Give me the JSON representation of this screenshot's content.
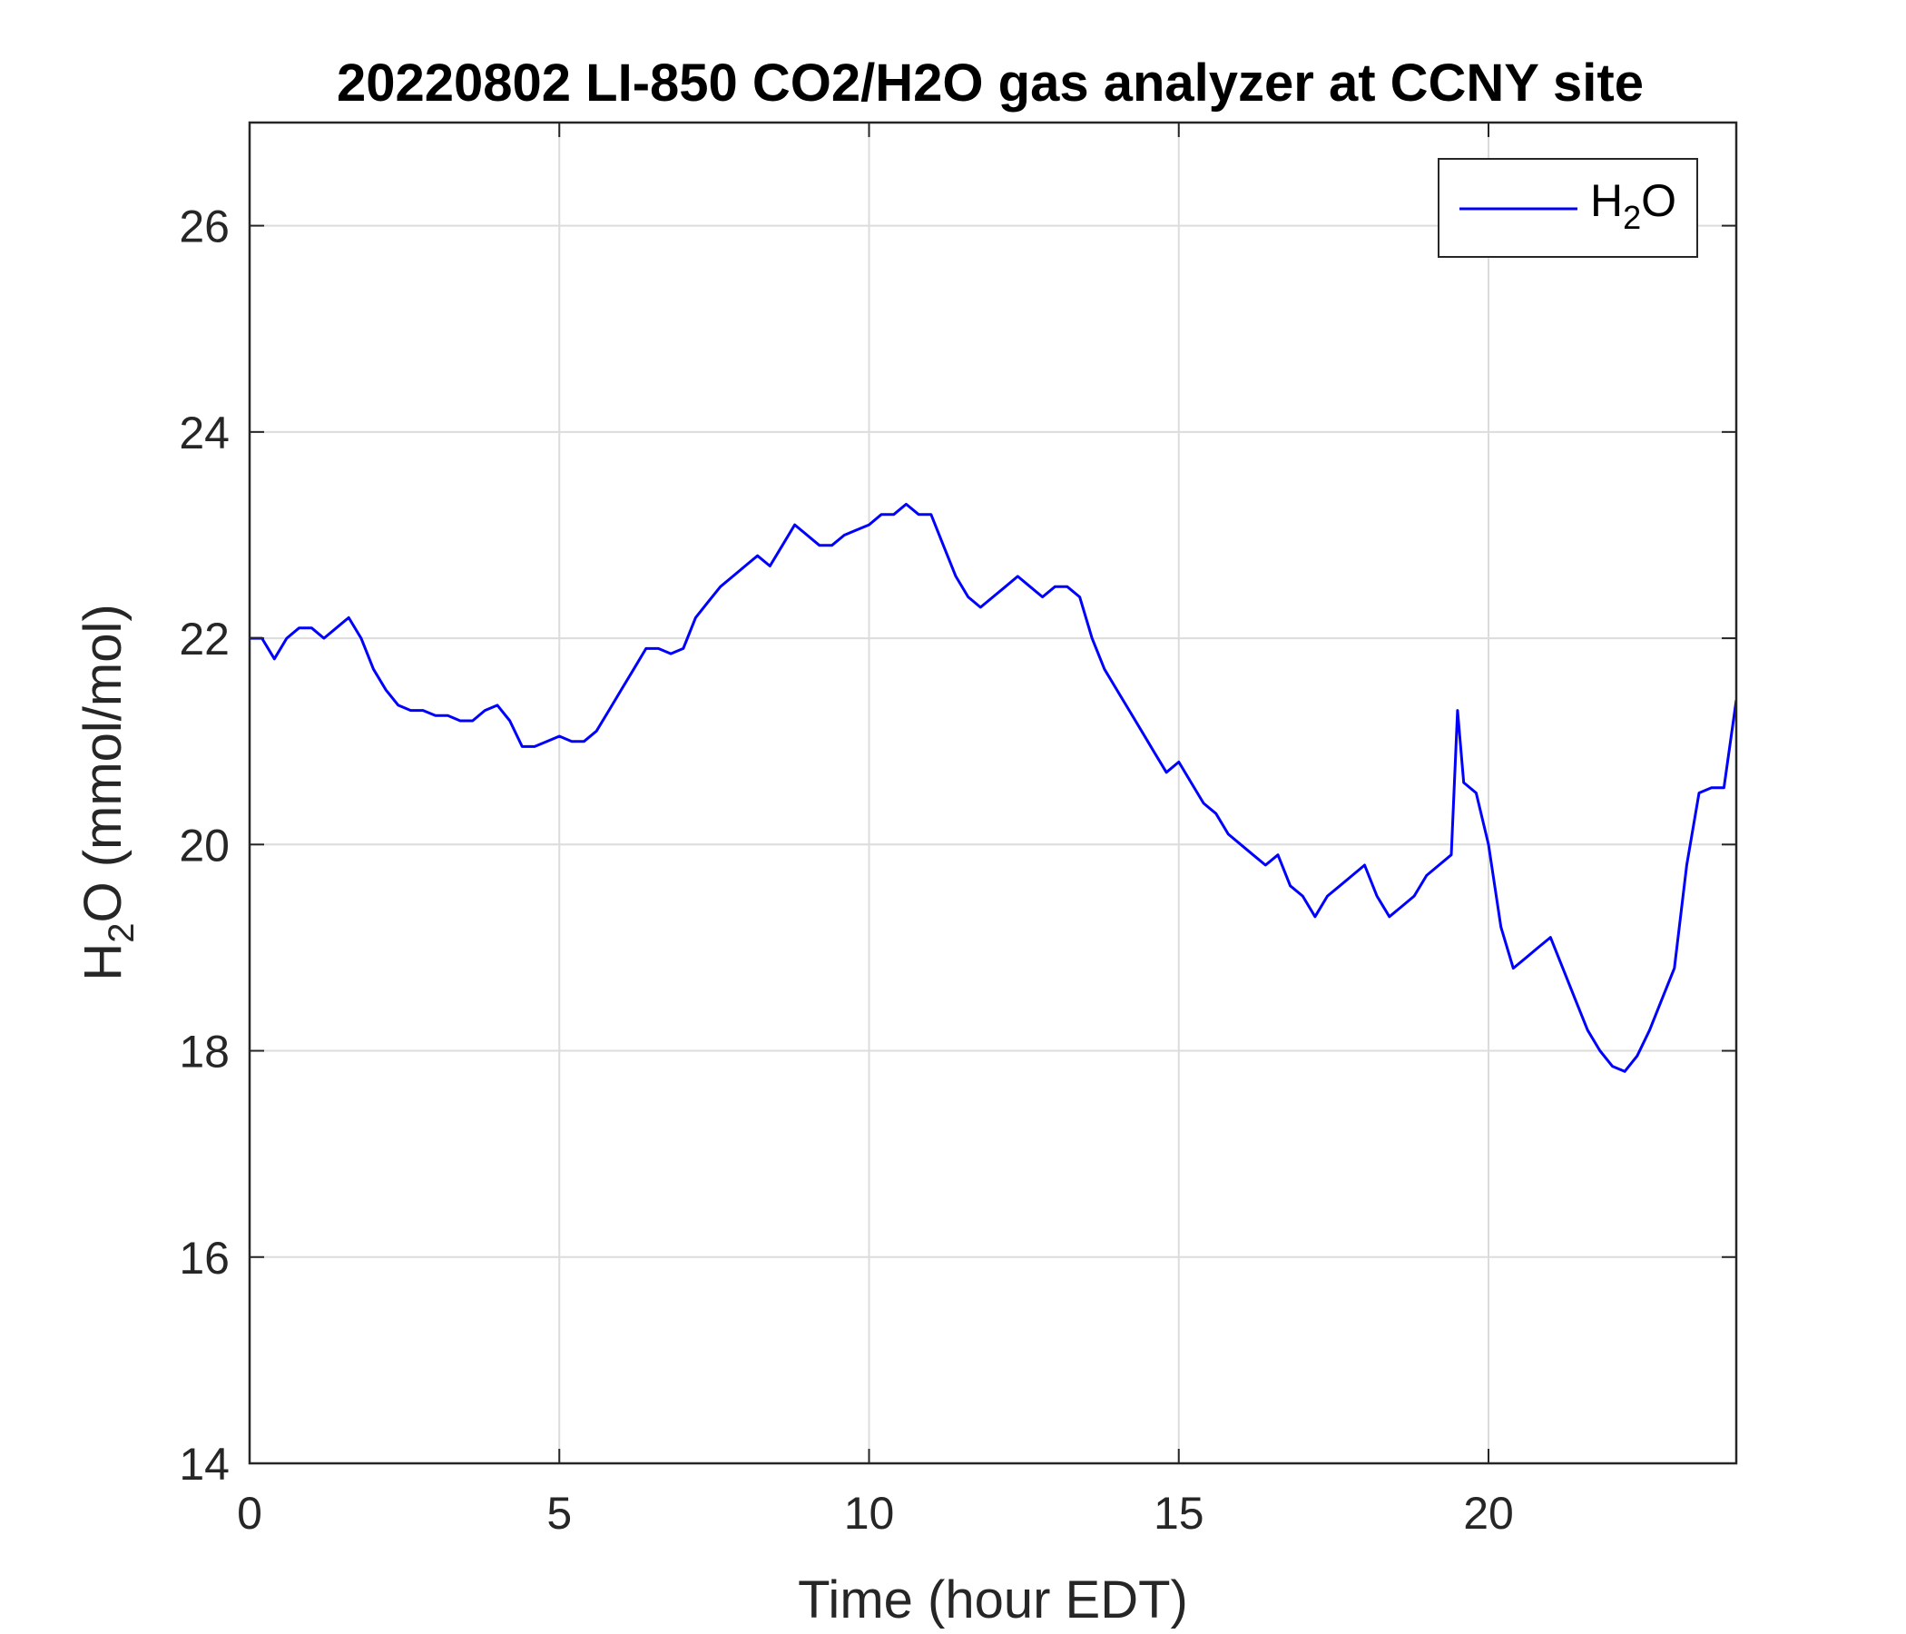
{
  "chart_data": {
    "type": "line",
    "title": "20220802 LI-850 CO2/H2O gas analyzer at CCNY site",
    "xlabel": "Time (hour EDT)",
    "ylabel": {
      "main": "H",
      "sub": "2",
      "rest": "O (mmol/mol)"
    },
    "xlim": [
      0,
      24
    ],
    "ylim": [
      14,
      27
    ],
    "xticks": [
      0,
      5,
      10,
      15,
      20
    ],
    "yticks": [
      14,
      16,
      18,
      20,
      22,
      24,
      26
    ],
    "grid": true,
    "legend_placement": "top-right",
    "series": [
      {
        "name": {
          "main": "H",
          "sub": "2",
          "rest": "O"
        },
        "color": "#0000ff",
        "x": [
          0.0,
          0.2,
          0.4,
          0.6,
          0.8,
          1.0,
          1.2,
          1.4,
          1.6,
          1.8,
          2.0,
          2.2,
          2.4,
          2.6,
          2.8,
          3.0,
          3.2,
          3.4,
          3.6,
          3.8,
          4.0,
          4.2,
          4.4,
          4.6,
          4.8,
          5.0,
          5.2,
          5.4,
          5.6,
          5.8,
          6.0,
          6.2,
          6.4,
          6.6,
          6.8,
          7.0,
          7.2,
          7.4,
          7.6,
          7.8,
          8.0,
          8.2,
          8.4,
          8.6,
          8.8,
          9.0,
          9.2,
          9.4,
          9.6,
          9.8,
          10.0,
          10.2,
          10.4,
          10.6,
          10.8,
          11.0,
          11.2,
          11.4,
          11.6,
          11.8,
          12.0,
          12.2,
          12.4,
          12.6,
          12.8,
          13.0,
          13.2,
          13.4,
          13.6,
          13.8,
          14.0,
          14.2,
          14.4,
          14.6,
          14.8,
          15.0,
          15.2,
          15.4,
          15.6,
          15.8,
          16.0,
          16.2,
          16.4,
          16.6,
          16.8,
          17.0,
          17.2,
          17.4,
          17.6,
          17.8,
          18.0,
          18.2,
          18.4,
          18.6,
          18.8,
          19.0,
          19.2,
          19.4,
          19.5,
          19.6,
          19.8,
          20.0,
          20.2,
          20.4,
          20.6,
          20.8,
          21.0,
          21.2,
          21.4,
          21.6,
          21.8,
          22.0,
          22.2,
          22.4,
          22.6,
          22.8,
          23.0,
          23.2,
          23.4,
          23.6,
          23.8,
          24.0
        ],
        "y": [
          22.0,
          22.0,
          21.8,
          22.0,
          22.1,
          22.1,
          22.0,
          22.1,
          22.2,
          22.0,
          21.7,
          21.5,
          21.35,
          21.3,
          21.3,
          21.25,
          21.25,
          21.2,
          21.2,
          21.3,
          21.35,
          21.2,
          20.95,
          20.95,
          21.0,
          21.05,
          21.0,
          21.0,
          21.1,
          21.3,
          21.5,
          21.7,
          21.9,
          21.9,
          21.85,
          21.9,
          22.2,
          22.35,
          22.5,
          22.6,
          22.7,
          22.8,
          22.7,
          22.9,
          23.1,
          23.0,
          22.9,
          22.9,
          23.0,
          23.05,
          23.1,
          23.2,
          23.2,
          23.3,
          23.2,
          23.2,
          22.9,
          22.6,
          22.4,
          22.3,
          22.4,
          22.5,
          22.6,
          22.5,
          22.4,
          22.5,
          22.5,
          22.4,
          22.0,
          21.7,
          21.5,
          21.3,
          21.1,
          20.9,
          20.7,
          20.8,
          20.6,
          20.4,
          20.3,
          20.1,
          20.0,
          19.9,
          19.8,
          19.9,
          19.6,
          19.5,
          19.3,
          19.5,
          19.6,
          19.7,
          19.8,
          19.5,
          19.3,
          19.4,
          19.5,
          19.7,
          19.8,
          19.9,
          21.3,
          20.6,
          20.5,
          20.0,
          19.2,
          18.8,
          18.9,
          19.0,
          19.1,
          18.8,
          18.5,
          18.2,
          18.0,
          17.85,
          17.8,
          17.95,
          18.2,
          18.5,
          18.8,
          19.8,
          20.5,
          20.55,
          20.55,
          21.4
        ]
      }
    ]
  }
}
